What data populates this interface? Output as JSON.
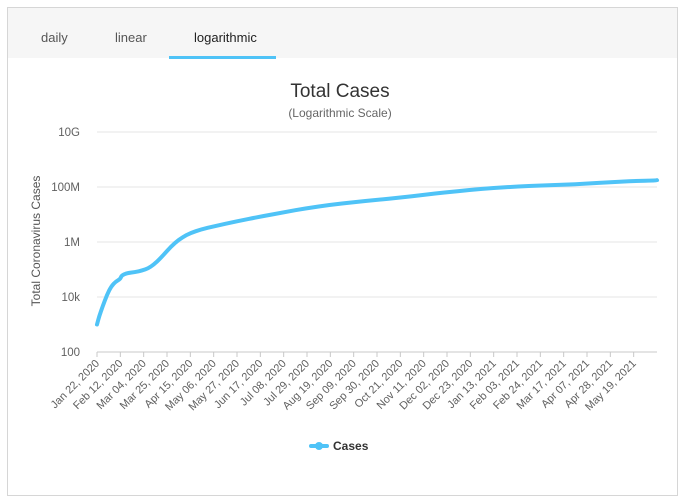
{
  "tabs": [
    {
      "label": "daily",
      "active": false
    },
    {
      "label": "linear",
      "active": false
    },
    {
      "label": "logarithmic",
      "active": true
    }
  ],
  "colors": {
    "series": "#4fc3f7",
    "grid": "#e6e6e6",
    "tab_bg": "#f6f6f6"
  },
  "chart_data": {
    "type": "line",
    "title": "Total Cases",
    "subtitle": "(Logarithmic Scale)",
    "ylabel": "Total Coronavirus Cases",
    "xlabel": "",
    "y_scale": "log",
    "ylim": [
      100,
      10000000000
    ],
    "y_ticks": [
      {
        "value": 100,
        "label": "100"
      },
      {
        "value": 10000,
        "label": "10k"
      },
      {
        "value": 1000000,
        "label": "1M"
      },
      {
        "value": 100000000,
        "label": "100M"
      },
      {
        "value": 10000000000,
        "label": "10G"
      }
    ],
    "x_range": [
      "2020-01-22",
      "2021-06-09"
    ],
    "x_ticks": [
      {
        "date": "2020-01-22",
        "label": "Jan 22, 2020"
      },
      {
        "date": "2020-02-12",
        "label": "Feb 12, 2020"
      },
      {
        "date": "2020-03-04",
        "label": "Mar 04, 2020"
      },
      {
        "date": "2020-03-25",
        "label": "Mar 25, 2020"
      },
      {
        "date": "2020-04-15",
        "label": "Apr 15, 2020"
      },
      {
        "date": "2020-05-06",
        "label": "May 06, 2020"
      },
      {
        "date": "2020-05-27",
        "label": "May 27, 2020"
      },
      {
        "date": "2020-06-17",
        "label": "Jun 17, 2020"
      },
      {
        "date": "2020-07-08",
        "label": "Jul 08, 2020"
      },
      {
        "date": "2020-07-29",
        "label": "Jul 29, 2020"
      },
      {
        "date": "2020-08-19",
        "label": "Aug 19, 2020"
      },
      {
        "date": "2020-09-09",
        "label": "Sep 09, 2020"
      },
      {
        "date": "2020-09-30",
        "label": "Sep 30, 2020"
      },
      {
        "date": "2020-10-21",
        "label": "Oct 21, 2020"
      },
      {
        "date": "2020-11-11",
        "label": "Nov 11, 2020"
      },
      {
        "date": "2020-12-02",
        "label": "Dec 02, 2020"
      },
      {
        "date": "2020-12-23",
        "label": "Dec 23, 2020"
      },
      {
        "date": "2021-01-13",
        "label": "Jan 13, 2021"
      },
      {
        "date": "2021-02-03",
        "label": "Feb 03, 2021"
      },
      {
        "date": "2021-02-24",
        "label": "Feb 24, 2021"
      },
      {
        "date": "2021-03-17",
        "label": "Mar 17, 2021"
      },
      {
        "date": "2021-04-07",
        "label": "Apr 07, 2021"
      },
      {
        "date": "2021-04-28",
        "label": "Apr 28, 2021"
      },
      {
        "date": "2021-05-19",
        "label": "May 19, 2021"
      }
    ],
    "grid": true,
    "legend_position": "bottom-center",
    "series": [
      {
        "name": "Cases",
        "points": [
          {
            "x": "2020-01-22",
            "y": 1000
          },
          {
            "x": "2020-01-24",
            "y": 2000
          },
          {
            "x": "2020-01-27",
            "y": 4500
          },
          {
            "x": "2020-01-31",
            "y": 12000
          },
          {
            "x": "2020-02-04",
            "y": 25000
          },
          {
            "x": "2020-02-08",
            "y": 37000
          },
          {
            "x": "2020-02-12",
            "y": 45000
          },
          {
            "x": "2020-02-13",
            "y": 60000
          },
          {
            "x": "2020-02-18",
            "y": 74000
          },
          {
            "x": "2020-02-25",
            "y": 80000
          },
          {
            "x": "2020-03-03",
            "y": 93000
          },
          {
            "x": "2020-03-08",
            "y": 110000
          },
          {
            "x": "2020-03-13",
            "y": 150000
          },
          {
            "x": "2020-03-18",
            "y": 230000
          },
          {
            "x": "2020-03-25",
            "y": 470000
          },
          {
            "x": "2020-04-01",
            "y": 930000
          },
          {
            "x": "2020-04-08",
            "y": 1500000
          },
          {
            "x": "2020-04-15",
            "y": 2100000
          },
          {
            "x": "2020-04-25",
            "y": 2900000
          },
          {
            "x": "2020-05-06",
            "y": 3700000
          },
          {
            "x": "2020-05-27",
            "y": 5700000
          },
          {
            "x": "2020-06-17",
            "y": 8400000
          },
          {
            "x": "2020-07-08",
            "y": 12000000
          },
          {
            "x": "2020-07-29",
            "y": 17000000
          },
          {
            "x": "2020-08-19",
            "y": 22500000
          },
          {
            "x": "2020-09-09",
            "y": 28000000
          },
          {
            "x": "2020-09-30",
            "y": 34000000
          },
          {
            "x": "2020-10-21",
            "y": 41500000
          },
          {
            "x": "2020-11-11",
            "y": 52000000
          },
          {
            "x": "2020-12-02",
            "y": 64500000
          },
          {
            "x": "2020-12-23",
            "y": 78500000
          },
          {
            "x": "2021-01-13",
            "y": 92000000
          },
          {
            "x": "2021-02-03",
            "y": 104000000
          },
          {
            "x": "2021-02-24",
            "y": 113000000
          },
          {
            "x": "2021-03-17",
            "y": 121000000
          },
          {
            "x": "2021-04-07",
            "y": 133000000
          },
          {
            "x": "2021-04-28",
            "y": 150000000
          },
          {
            "x": "2021-05-19",
            "y": 165000000
          },
          {
            "x": "2021-06-09",
            "y": 175000000
          }
        ]
      }
    ]
  }
}
